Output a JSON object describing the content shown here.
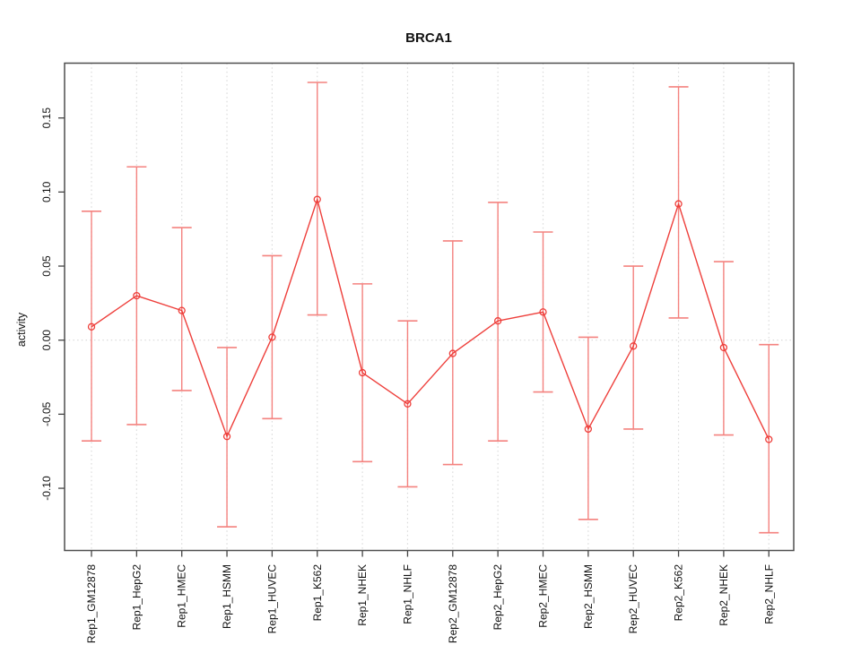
{
  "title": "BRCA1",
  "ylabel": "activity",
  "colors": {
    "series": "#ee3f3b",
    "error_bar": "#f4827f",
    "grid": "#dadada",
    "zero_line": "#d8d8d8",
    "box": "#4f4f4f",
    "tick": "#444444",
    "text": "#111111"
  },
  "chart_data": {
    "type": "line",
    "title": "BRCA1",
    "xlabel": "",
    "ylabel": "activity",
    "point_style": "open-circle",
    "error_bars": true,
    "legend": "none",
    "grid": "dotted vertical gridline at each category; dotted horizontal line at y=0",
    "ylim": [
      -0.142,
      0.187
    ],
    "yticks": [
      -0.1,
      -0.05,
      0.0,
      0.05,
      0.1,
      0.15
    ],
    "categories": [
      "Rep1_GM12878",
      "Rep1_HepG2",
      "Rep1_HMEC",
      "Rep1_HSMM",
      "Rep1_HUVEC",
      "Rep1_K562",
      "Rep1_NHEK",
      "Rep1_NHLF",
      "Rep2_GM12878",
      "Rep2_HepG2",
      "Rep2_HMEC",
      "Rep2_HSMM",
      "Rep2_HUVEC",
      "Rep2_K562",
      "Rep2_NHEK",
      "Rep2_NHLF"
    ],
    "series": [
      {
        "name": "activity",
        "values": [
          0.009,
          0.03,
          0.02,
          -0.065,
          0.002,
          0.095,
          -0.022,
          -0.043,
          -0.009,
          0.013,
          0.019,
          -0.06,
          -0.004,
          0.092,
          -0.005,
          -0.067
        ],
        "upper": [
          0.087,
          0.117,
          0.076,
          -0.005,
          0.057,
          0.174,
          0.038,
          0.013,
          0.067,
          0.093,
          0.073,
          0.002,
          0.05,
          0.171,
          0.053,
          -0.003
        ],
        "lower": [
          -0.068,
          -0.057,
          -0.034,
          -0.126,
          -0.053,
          0.017,
          -0.082,
          -0.099,
          -0.084,
          -0.068,
          -0.035,
          -0.121,
          -0.06,
          0.015,
          -0.064,
          -0.13
        ]
      }
    ]
  }
}
